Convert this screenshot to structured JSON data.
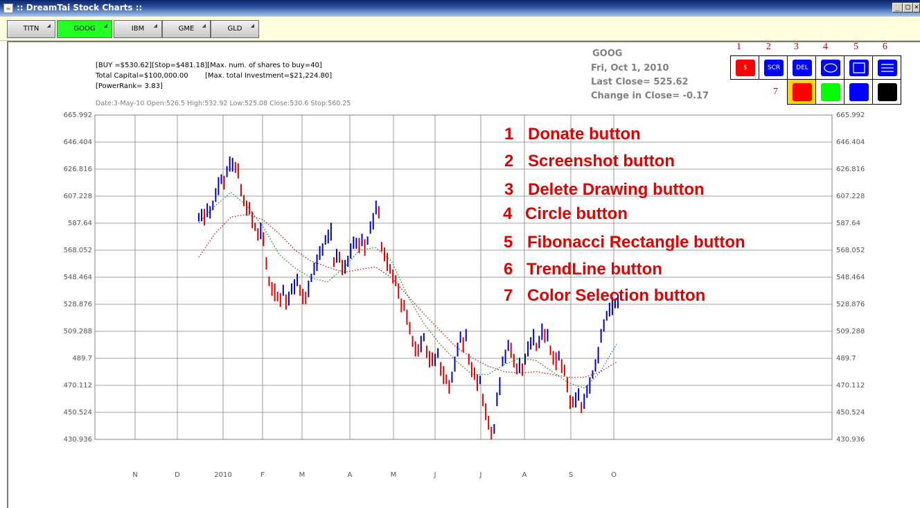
{
  "window": {
    "title": ":: DreamTai Stock Charts ::",
    "minimize": "_",
    "maximize": "□",
    "close": "×"
  },
  "tabs": [
    {
      "label": "TITN",
      "active": false
    },
    {
      "label": "GOOG",
      "active": true
    },
    {
      "label": "IBM",
      "active": false
    },
    {
      "label": "GME",
      "active": false
    },
    {
      "label": "GLD",
      "active": false
    }
  ],
  "info": {
    "line1": "[BUY =$530.62][Stop=$481.18][Max. num. of shares to buy=40]",
    "line2a": "Total Capital=$100,000.00",
    "line2b": "[Max. total Investment=$21,224.80]",
    "line3": "[PowerRank= 3.83]",
    "dateline": "Date:3-May-10 Open:526.5 High:532.92 Low:525.08 Close:530.6 Stop:560.25"
  },
  "quote": {
    "symbol": "GOOG",
    "date": "Fri, Oct 1, 2010",
    "last_close": "Last Close=  525.62",
    "change": "Change in Close=  -0.17"
  },
  "toolbox": {
    "numbers": [
      "1",
      "2",
      "3",
      "4",
      "5",
      "6",
      "7"
    ],
    "buttons": [
      {
        "label": "$",
        "color": "#ff0000",
        "icon": "dollar-icon"
      },
      {
        "label": "SCR",
        "color": "#0000ff",
        "icon": ""
      },
      {
        "label": "DEL",
        "color": "#0000ff",
        "icon": ""
      },
      {
        "label": "",
        "color": "#0000ff",
        "icon": "circle-icon"
      },
      {
        "label": "",
        "color": "#0000ff",
        "icon": "rectangle-icon"
      },
      {
        "label": "",
        "color": "#0000ff",
        "icon": "trendline-icon"
      }
    ],
    "swatches": [
      "#ff0000",
      "#00ff00",
      "#0000ff",
      "#000000"
    ],
    "selected_swatch": 0,
    "selected_border": "#ffd700"
  },
  "legend": [
    {
      "num": "1",
      "text": "Donate button"
    },
    {
      "num": "2",
      "text": "Screenshot button"
    },
    {
      "num": "3",
      "text": "Delete Drawing button"
    },
    {
      "num": "4",
      "text": "Circle button"
    },
    {
      "num": "5",
      "text": "Fibonacci Rectangle button"
    },
    {
      "num": "6",
      "text": "TrendLine button"
    },
    {
      "num": "7",
      "text": "Color Selection button"
    }
  ],
  "colors": {
    "up": "#0000cc",
    "down": "#dd0000",
    "ma_short": "#008800",
    "ma_long": "#cc0000",
    "grid": "#808080",
    "axis_text": "#555555"
  },
  "chart_data": {
    "type": "bar",
    "ylim": [
      430.936,
      665.992
    ],
    "yticks": [
      "665.992",
      "646.404",
      "626.816",
      "607.228",
      "587.64",
      "568.052",
      "548.464",
      "528.876",
      "509.288",
      "489.7",
      "470.112",
      "450.524",
      "430.936"
    ],
    "months": [
      "N",
      "D",
      "2010",
      "F",
      "M",
      "A",
      "M",
      "J",
      "J",
      "A",
      "S",
      "O"
    ],
    "series": [
      {
        "name": "",
        "values": [
          592,
          594,
          593,
          596,
          597,
          600,
          608,
          615,
          620,
          618,
          624,
          630,
          632,
          628,
          626,
          610,
          605,
          600,
          598,
          590,
          585,
          580,
          583,
          575,
          560,
          545,
          540,
          538,
          535,
          533,
          538,
          530,
          535,
          540,
          542,
          545,
          540,
          536,
          533,
          540,
          548,
          555,
          560,
          565,
          570,
          575,
          578,
          582,
          560,
          565,
          562,
          555,
          558,
          560,
          568,
          572,
          574,
          573,
          575,
          570,
          575,
          585,
          590,
          598,
          597,
          570,
          565,
          560,
          555,
          550,
          545,
          538,
          530,
          528,
          520,
          510,
          503,
          498,
          495,
          500,
          505,
          495,
          490,
          488,
          490,
          493,
          482,
          478,
          475,
          470,
          475,
          485,
          498,
          505,
          500,
          505,
          490,
          483,
          478,
          472,
          474,
          460,
          452,
          442,
          437,
          438,
          460,
          470,
          488,
          492,
          498,
          495,
          490,
          482,
          485,
          480,
          490,
          498,
          500,
          505,
          498,
          502,
          510,
          505,
          508,
          495,
          490,
          488,
          492,
          485,
          480,
          470,
          460,
          458,
          460,
          462,
          455,
          460,
          465,
          470,
          478,
          485,
          493,
          505,
          515,
          520,
          525,
          528,
          530,
          532
        ]
      }
    ],
    "ma_short": [
      588,
      600,
      610,
      600,
      585,
      565,
      555,
      548,
      545,
      555,
      568,
      570,
      560,
      535,
      515,
      500,
      488,
      478,
      478,
      485,
      490,
      488,
      480,
      472,
      468,
      480,
      500
    ],
    "ma_long": [
      563,
      580,
      592,
      594,
      590,
      580,
      568,
      560,
      556,
      552,
      554,
      556,
      548,
      535,
      522,
      510,
      498,
      490,
      484,
      480,
      479,
      480,
      478,
      476,
      476,
      480,
      487
    ]
  }
}
